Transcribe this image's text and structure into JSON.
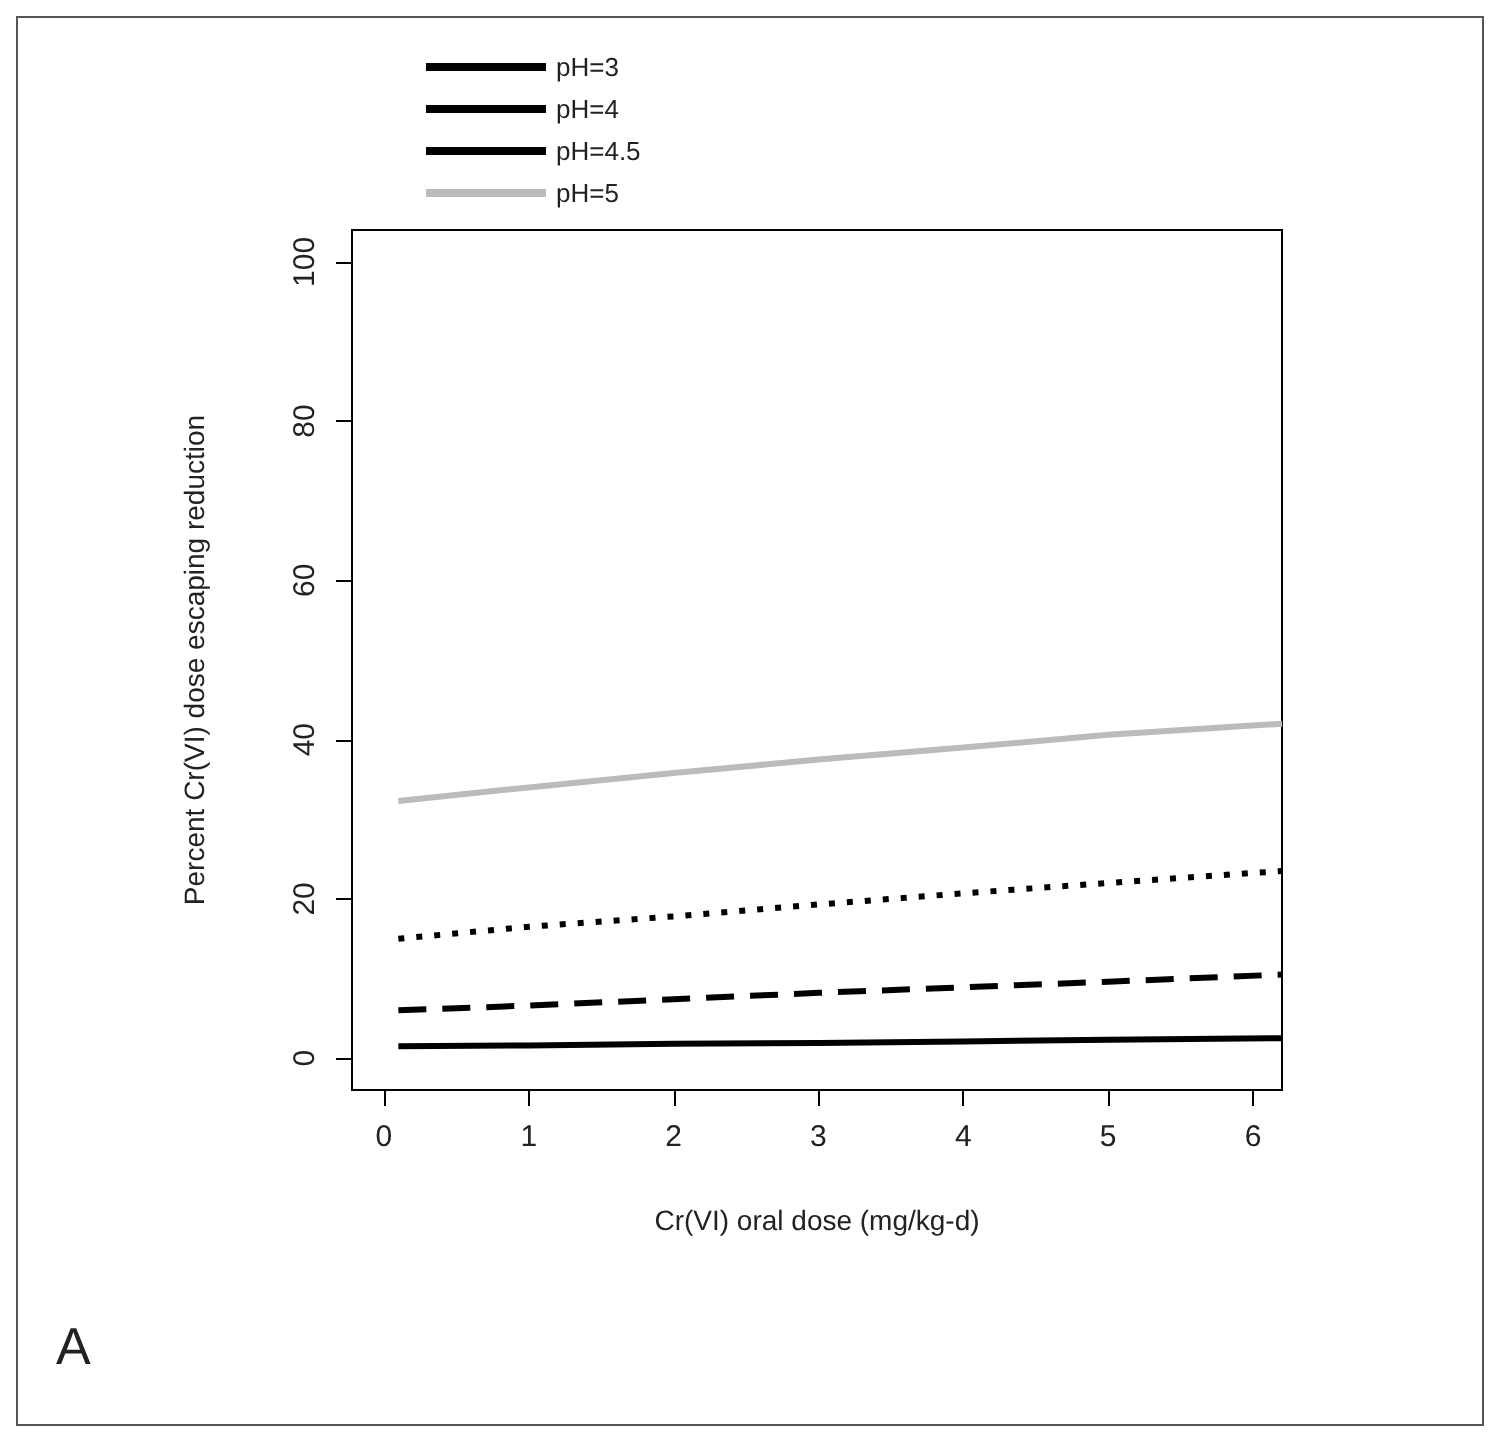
{
  "chart_data": {
    "type": "line",
    "xlabel": "Cr(VI) oral dose (mg/kg-d)",
    "ylabel": "Percent Cr(VI) dose escaping reduction",
    "x": [
      0.1,
      1,
      2,
      3,
      4,
      5,
      6.2
    ],
    "series": [
      {
        "name": "pH=3",
        "color": "#000000",
        "line_style": "solid",
        "values": [
          1.5,
          1.6,
          1.8,
          1.9,
          2.1,
          2.3,
          2.5
        ]
      },
      {
        "name": "pH=4",
        "color": "#000000",
        "line_style": "dashed",
        "values": [
          6,
          6.6,
          7.4,
          8.2,
          8.9,
          9.6,
          10.5
        ]
      },
      {
        "name": "pH=4.5",
        "color": "#000000",
        "line_style": "dotted",
        "values": [
          15,
          16.5,
          17.8,
          19.3,
          20.7,
          22,
          23.5
        ]
      },
      {
        "name": "pH=5",
        "color": "#bbbbbb",
        "line_style": "solid",
        "values": [
          32.3,
          34,
          35.8,
          37.5,
          39,
          40.6,
          42
        ]
      }
    ],
    "xlim": [
      -0.22,
      6.2
    ],
    "xticks": [
      0,
      1,
      2,
      3,
      4,
      5,
      6
    ],
    "ylim": [
      -4,
      104
    ],
    "yticks": [
      0,
      20,
      40,
      60,
      80,
      100
    ],
    "legend": "top left",
    "grid": false,
    "marker": "none",
    "annotations": [
      "A"
    ]
  }
}
